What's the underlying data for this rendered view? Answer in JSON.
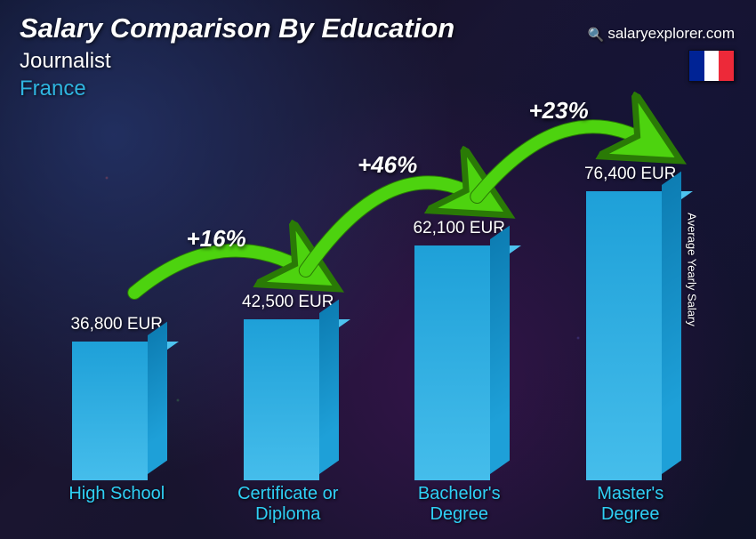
{
  "title": "Salary Comparison By Education",
  "subtitle": "Journalist",
  "country": "France",
  "country_color": "#2fb5e0",
  "brand_text": "salaryexplorer.com",
  "yaxis_label": "Average Yearly Salary",
  "flag_colors": [
    "#002395",
    "#ffffff",
    "#ed2939"
  ],
  "chart": {
    "type": "bar",
    "ymax": 80000,
    "bar_colors": {
      "front": "#1ea0d8",
      "side": "#0d7db3",
      "top": "#4dc3ef"
    },
    "category_color": "#2fd0f5",
    "value_color": "#ffffff",
    "arrow_color": "#4dd30f",
    "arrow_stroke": "#2a7a06",
    "bars": [
      {
        "category": "High School",
        "value": 36800,
        "label": "36,800 EUR"
      },
      {
        "category": "Certificate or Diploma",
        "value": 42500,
        "label": "42,500 EUR"
      },
      {
        "category": "Bachelor's Degree",
        "value": 62100,
        "label": "62,100 EUR"
      },
      {
        "category": "Master's Degree",
        "value": 76400,
        "label": "76,400 EUR"
      }
    ],
    "increments": [
      {
        "label": "+16%"
      },
      {
        "label": "+46%"
      },
      {
        "label": "+23%"
      }
    ]
  }
}
